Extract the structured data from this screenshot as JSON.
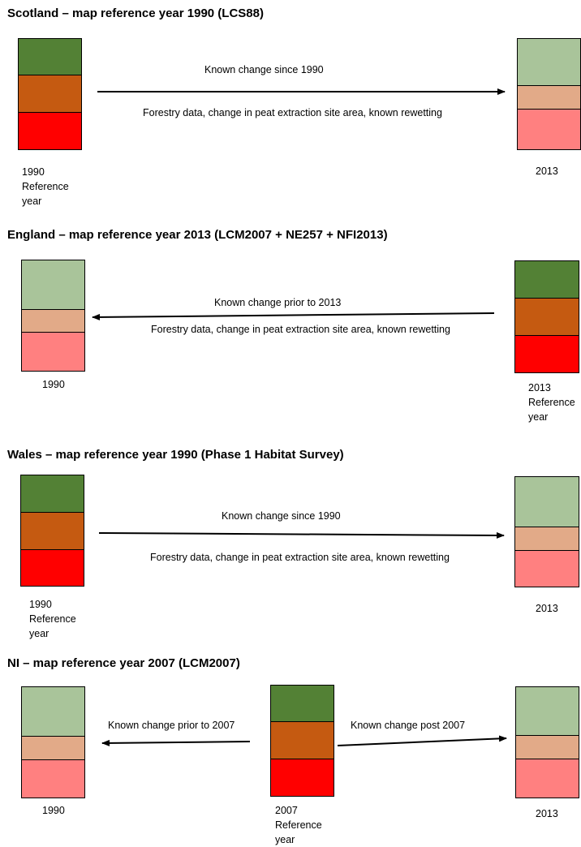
{
  "sections": {
    "scotland": {
      "title": "Scotland – map reference year 1990 (LCS88)",
      "arrow_label": "Known change since 1990",
      "arrow_sub": "Forestry data, change in peat extraction site area, known rewetting",
      "left_label": [
        "1990",
        "Reference",
        "year"
      ],
      "right_label": "2013"
    },
    "england": {
      "title": "England – map reference year 2013 (LCM2007 + NE257 + NFI2013)",
      "arrow_label": "Known change prior to 2013",
      "arrow_sub": "Forestry data, change in peat extraction site area, known rewetting",
      "left_label": "1990",
      "right_label": [
        "2013",
        "Reference",
        "year"
      ]
    },
    "wales": {
      "title": "Wales – map reference year 1990 (Phase 1 Habitat Survey)",
      "arrow_label": "Known change since 1990",
      "arrow_sub": "Forestry data, change in peat extraction site area, known rewetting",
      "left_label": [
        "1990",
        "Reference",
        "year"
      ],
      "right_label": "2013"
    },
    "ni": {
      "title": "NI  – map reference year 2007 (LCM2007)",
      "left_arrow_label": "Known change prior to 2007",
      "right_arrow_label": "Known change post 2007",
      "left_label": "1990",
      "middle_label": [
        "2007",
        "Reference",
        "year"
      ],
      "right_label": "2013"
    }
  },
  "colors": {
    "dark_green": "#538135",
    "brown": "#c55a11",
    "red": "#ff0000",
    "light_green": "#a9c49a",
    "pale_brown": "#e2aa88",
    "pale_red": "#ff8080"
  }
}
